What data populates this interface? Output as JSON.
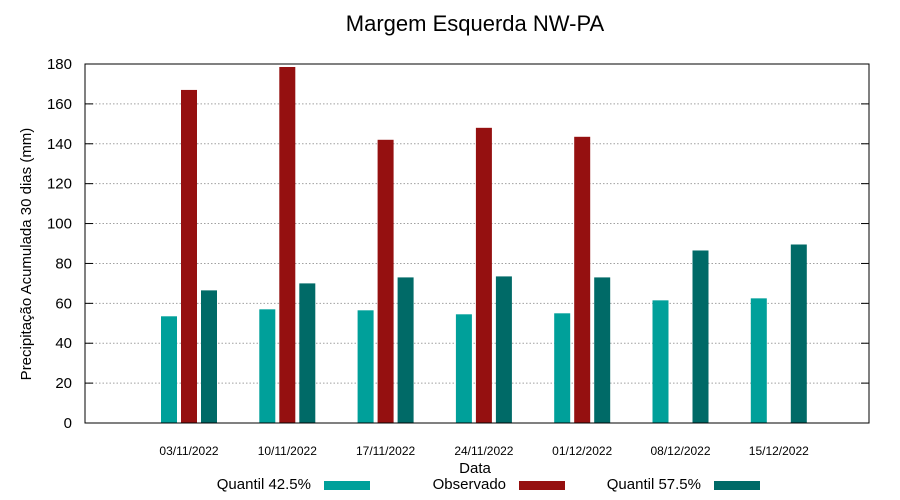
{
  "chart_data": {
    "type": "bar",
    "title": "Margem Esquerda NW-PA",
    "xlabel": "Data",
    "ylabel": "Precipitação Acumulada 30 dias (mm)",
    "ylim": [
      0,
      180
    ],
    "yticks": [
      0,
      20,
      40,
      60,
      80,
      100,
      120,
      140,
      160,
      180
    ],
    "grid": true,
    "legend_position": "bottom",
    "categories": [
      "03/11/2022",
      "10/11/2022",
      "17/11/2022",
      "24/11/2022",
      "01/12/2022",
      "08/12/2022",
      "15/12/2022"
    ],
    "series": [
      {
        "name": "Quantil 42.5%",
        "color": "#00a09a",
        "values": [
          53.5,
          57,
          56.5,
          54.5,
          55,
          61.5,
          62.5
        ]
      },
      {
        "name": "Observado",
        "color": "#951010",
        "values": [
          167,
          178.5,
          142,
          148,
          143.5,
          null,
          null
        ]
      },
      {
        "name": "Quantil 57.5%",
        "color": "#006a67",
        "values": [
          66.5,
          70,
          73,
          73.5,
          73,
          86.5,
          89.5
        ]
      }
    ]
  }
}
